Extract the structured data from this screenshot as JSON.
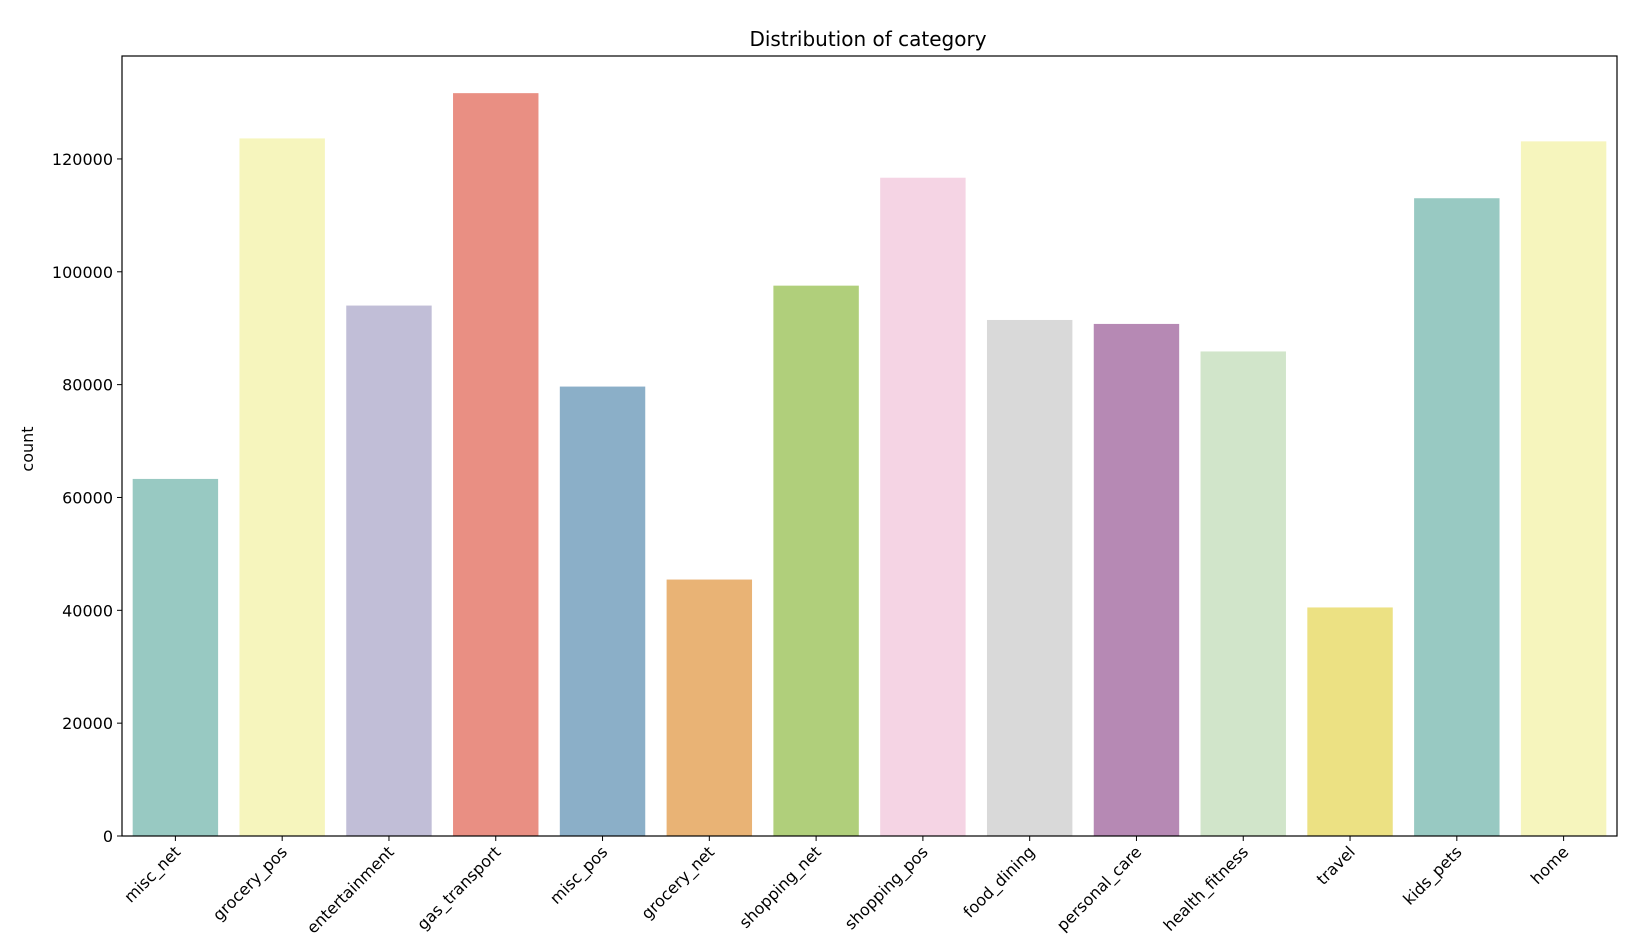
{
  "chart_data": {
    "type": "bar",
    "title": "Distribution of category",
    "xlabel": "",
    "ylabel": "count",
    "categories": [
      "misc_net",
      "grocery_pos",
      "entertainment",
      "gas_transport",
      "misc_pos",
      "grocery_net",
      "shopping_net",
      "shopping_pos",
      "food_dining",
      "personal_care",
      "health_fitness",
      "travel",
      "kids_pets",
      "home"
    ],
    "values": [
      63287,
      123638,
      94014,
      131659,
      79655,
      45452,
      97543,
      116672,
      91461,
      90758,
      85879,
      40507,
      113035,
      123115
    ],
    "colors": [
      "#98C9C2",
      "#F6F5BD",
      "#C1BED7",
      "#E98F83",
      "#8BAFC8",
      "#E9B375",
      "#B0CF7B",
      "#F5D4E4",
      "#D9D9D9",
      "#B689B4",
      "#D1E5CA",
      "#ECE183",
      "#98C9C2",
      "#F6F5BD"
    ],
    "ylim": [
      0,
      138245
    ],
    "yticks": [
      0,
      20000,
      40000,
      60000,
      80000,
      100000,
      120000
    ],
    "ytick_labels": [
      "0",
      "20000",
      "40000",
      "60000",
      "80000",
      "100000",
      "120000"
    ],
    "grid": false,
    "legend": "none"
  }
}
